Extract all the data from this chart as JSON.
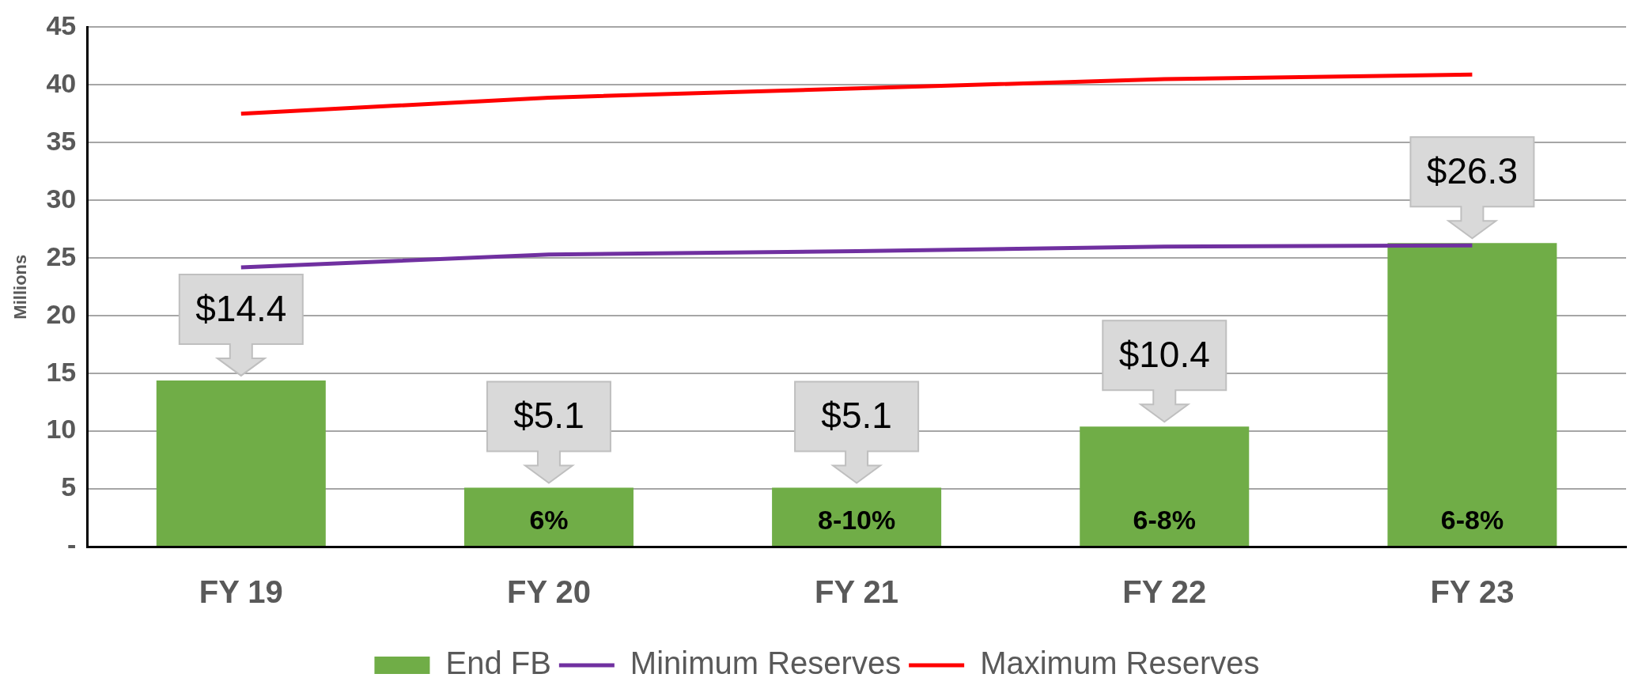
{
  "chart_data": {
    "type": "bar",
    "ylabel": "Millions",
    "categories": [
      "FY 19",
      "FY 20",
      "FY 21",
      "FY 22",
      "FY 23"
    ],
    "series": [
      {
        "name": "End FB",
        "color": "#70ad47",
        "values": [
          14.4,
          5.1,
          5.1,
          10.4,
          26.3
        ],
        "value_labels": [
          "$14.4",
          "$5.1",
          "$5.1",
          "$10.4",
          "$26.3"
        ]
      },
      {
        "name": "Minimum Reserves",
        "type": "line",
        "color": "#7030a0",
        "values": [
          24.2,
          25.3,
          25.6,
          26.0,
          26.1
        ]
      },
      {
        "name": "Maximum Reserves",
        "type": "line",
        "color": "#ff0000",
        "values": [
          37.5,
          38.9,
          39.7,
          40.5,
          40.9
        ]
      }
    ],
    "ylim": [
      0,
      45
    ],
    "yticks": [
      {
        "value": 0,
        "label": "-"
      },
      5,
      10,
      15,
      20,
      25,
      30,
      35,
      40,
      45
    ],
    "grid": "y",
    "legend": "bottom",
    "marker": "none",
    "annotations": [
      "6%",
      "8-10%",
      "6-8%",
      "6-8%"
    ]
  }
}
